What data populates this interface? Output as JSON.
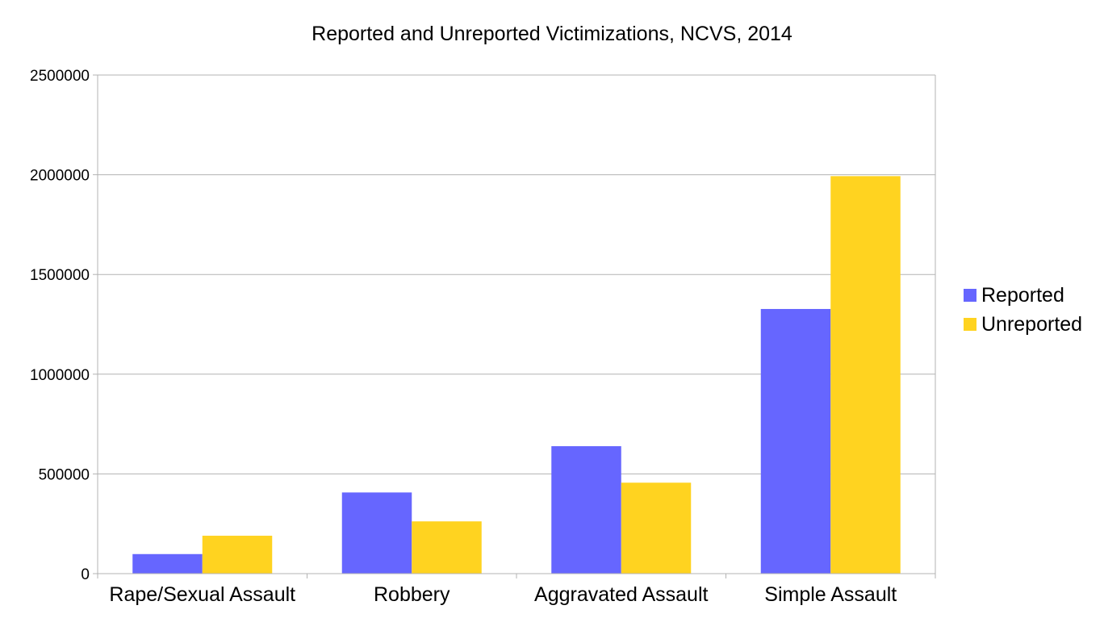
{
  "chart_data": {
    "type": "bar",
    "title": "Reported and Unreported Victimizations, NCVS, 2014",
    "xlabel": "",
    "ylabel": "",
    "categories": [
      "Rape/Sexual Assault",
      "Robbery",
      "Aggravated Assault",
      "Simple Assault"
    ],
    "series": [
      {
        "name": "Reported",
        "color": "#6666ff",
        "values": [
          98000,
          407000,
          639000,
          1327000
        ]
      },
      {
        "name": "Unreported",
        "color": "#ffd320",
        "values": [
          190000,
          262000,
          456000,
          1993000
        ]
      }
    ],
    "ylim": [
      0,
      2500000
    ],
    "yticks": [
      "0",
      "500000",
      "1000000",
      "1500000",
      "2000000",
      "2500000"
    ],
    "grid": true,
    "legend_position": "right"
  }
}
